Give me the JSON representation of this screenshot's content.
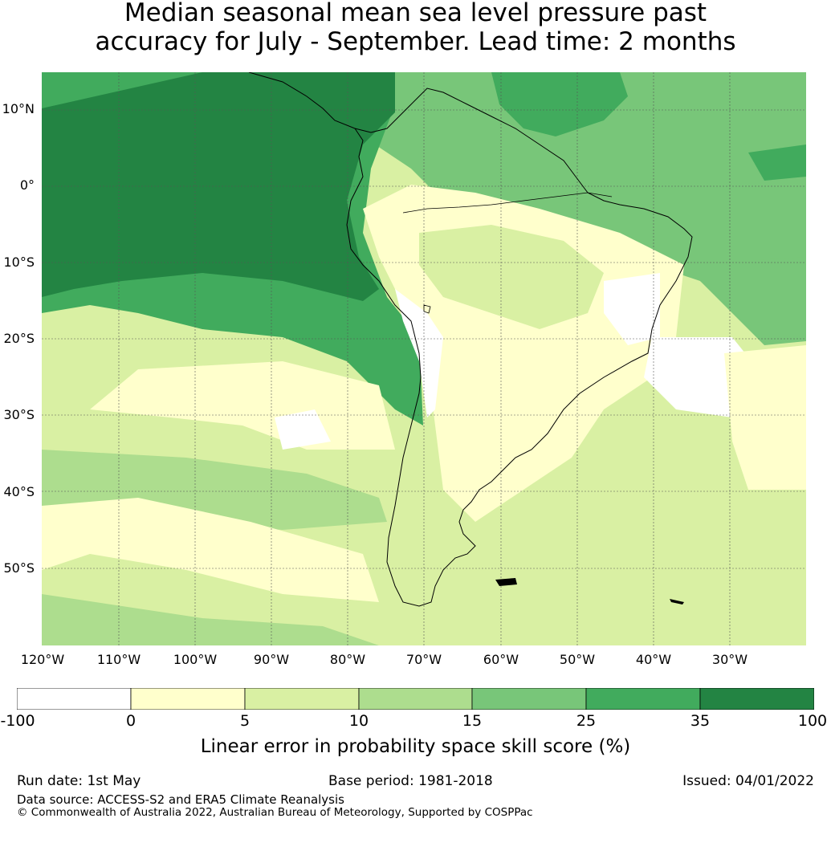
{
  "title": {
    "line1": "Median seasonal mean sea level pressure past",
    "line2": "accuracy for July - September. Lead time: 2 months"
  },
  "map": {
    "latitude_labels": [
      "10°N",
      "0°",
      "10°S",
      "20°S",
      "30°S",
      "40°S",
      "50°S"
    ],
    "longitude_labels": [
      "120°W",
      "110°W",
      "100°W",
      "90°W",
      "80°W",
      "70°W",
      "60°W",
      "50°W",
      "40°W",
      "30°W"
    ],
    "colors": {
      "band_-100_0": "#ffffff",
      "band_0_5": "#ffffcc",
      "band_5_10": "#d9f0a3",
      "band_10_15": "#addd8e",
      "band_15_25": "#78c679",
      "band_25_35": "#41ab5d",
      "band_35_100": "#238443",
      "coastline": "#000000"
    }
  },
  "colorbar": {
    "ticks": [
      "-100",
      "0",
      "5",
      "10",
      "15",
      "25",
      "35",
      "100"
    ],
    "label": "Linear error in probability space skill score (%)"
  },
  "footer": {
    "run_date": "Run date: 1st May",
    "base_period": "Base period: 1981-2018",
    "issued": "Issued: 04/01/2022",
    "data_source": "Data source: ACCESS-S2 and ERA5 Climate Reanalysis",
    "copyright": "© Commonwealth of Australia 2022, Australian Bureau of Meteorology, Supported by COSPPac"
  }
}
